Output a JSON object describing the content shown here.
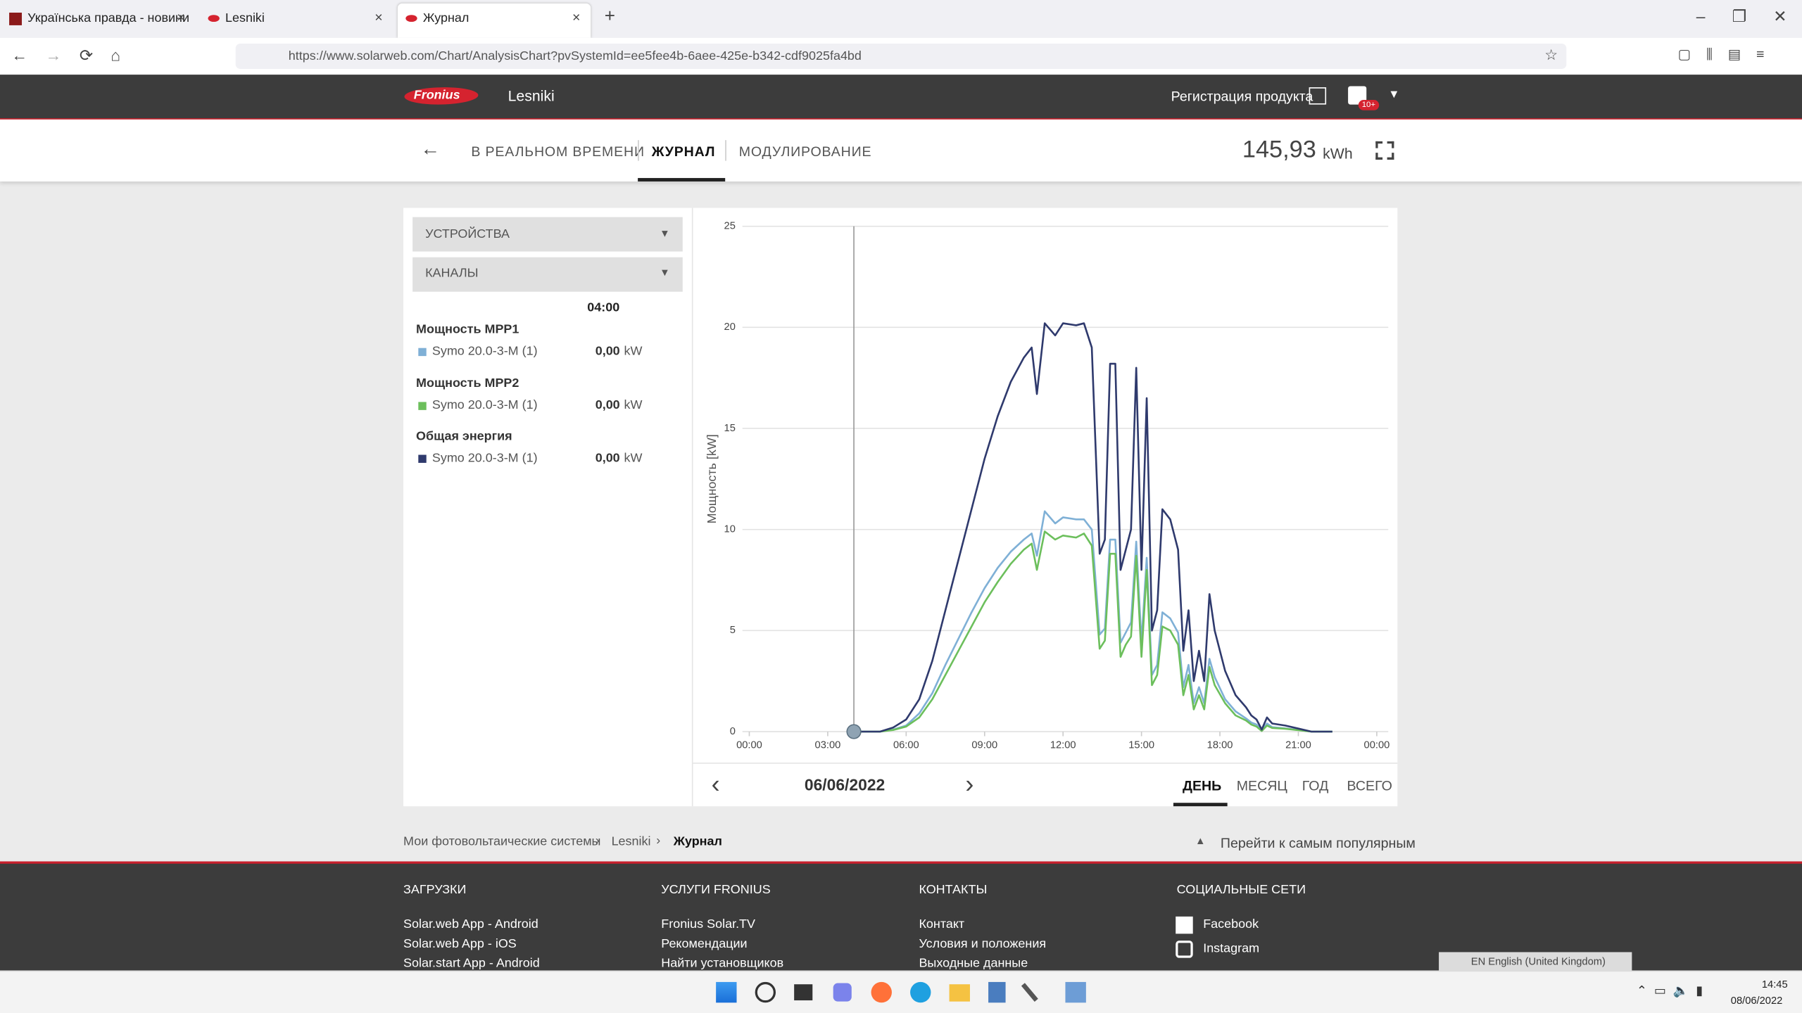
{
  "browser": {
    "tabs": [
      "Українська правда - новини",
      "Lesniki",
      "Журнал"
    ],
    "url": "https://www.solarweb.com/Chart/AnalysisChart?pvSystemId=ee5fee4b-6aee-425e-b342-cdf9025fa4bd"
  },
  "header": {
    "logo": "Fronius",
    "system": "Lesniki",
    "register": "Регистрация продукта",
    "badge": "10+"
  },
  "nav": {
    "items": [
      "В РЕАЛЬНОМ ВРЕМЕНИ",
      "ЖУРНАЛ",
      "МОДУЛИРОВАНИЕ"
    ],
    "total": "145,93",
    "total_unit": "kWh"
  },
  "sidebar": {
    "dropdowns": [
      "УСТРОЙСТВА",
      "КАНАЛЫ"
    ],
    "time": "04:00",
    "groups": [
      {
        "title": "Мощность MPP1",
        "device": "Symo 20.0-3-M (1)",
        "value": "0,00",
        "unit": "kW"
      },
      {
        "title": "Мощность MPP2",
        "device": "Symo 20.0-3-M (1)",
        "value": "0,00",
        "unit": "kW"
      },
      {
        "title": "Общая энергия",
        "device": "Symo 20.0-3-M (1)",
        "value": "0,00",
        "unit": "kW"
      }
    ]
  },
  "chart_data": {
    "type": "line",
    "y_label": "Мощность [kW]",
    "xlim": [
      0,
      24
    ],
    "xticks": [
      {
        "value": 0,
        "label": "00:00"
      },
      {
        "value": 3,
        "label": "03:00"
      },
      {
        "value": 6,
        "label": "06:00"
      },
      {
        "value": 9,
        "label": "09:00"
      },
      {
        "value": 12,
        "label": "12:00"
      },
      {
        "value": 15,
        "label": "15:00"
      },
      {
        "value": 18,
        "label": "18:00"
      },
      {
        "value": 21,
        "label": "21:00"
      },
      {
        "value": 24,
        "label": "00:00"
      }
    ],
    "ylim": [
      0,
      25
    ],
    "yticks": [
      0,
      5,
      10,
      15,
      20,
      25
    ],
    "grid": true,
    "cursor_x": 4,
    "x": [
      4,
      5,
      5.5,
      6,
      6.5,
      7,
      7.5,
      8,
      8.5,
      9,
      9.5,
      10,
      10.5,
      10.8,
      11,
      11.3,
      11.7,
      12,
      12.5,
      12.8,
      13.1,
      13.4,
      13.6,
      13.8,
      14,
      14.2,
      14.4,
      14.6,
      14.8,
      15,
      15.2,
      15.4,
      15.6,
      15.8,
      16.1,
      16.4,
      16.6,
      16.8,
      17,
      17.2,
      17.4,
      17.6,
      17.8,
      18.2,
      18.6,
      19,
      19.2,
      19.4,
      19.6,
      19.8,
      20,
      20.5,
      21,
      21.5,
      22,
      22.3
    ],
    "series": [
      {
        "name": "Мощность MPP1",
        "color": "#7fb0d6",
        "values": [
          0,
          0,
          0.1,
          0.3,
          0.9,
          1.9,
          3.3,
          4.6,
          5.9,
          7.1,
          8.1,
          8.9,
          9.5,
          9.8,
          8.7,
          10.9,
          10.3,
          10.6,
          10.5,
          10.5,
          10,
          4.8,
          5.1,
          9.5,
          9.5,
          4.4,
          4.9,
          5.4,
          9.4,
          4.4,
          8.6,
          2.8,
          3.3,
          5.9,
          5.6,
          4.9,
          2.2,
          3.3,
          1.4,
          2.2,
          1.4,
          3.6,
          2.7,
          1.6,
          1,
          0.65,
          0.45,
          0.35,
          0.05,
          0.4,
          0.22,
          0.16,
          0.08,
          0,
          0,
          0
        ]
      },
      {
        "name": "Мощность MPP2",
        "color": "#6cbf5c",
        "values": [
          0,
          0,
          0.08,
          0.25,
          0.7,
          1.6,
          2.8,
          4,
          5.2,
          6.4,
          7.4,
          8.3,
          9,
          9.3,
          8,
          9.9,
          9.5,
          9.7,
          9.6,
          9.8,
          9.2,
          4.1,
          4.5,
          8.8,
          8.8,
          3.7,
          4.3,
          4.7,
          8.7,
          3.7,
          8,
          2.3,
          2.8,
          5.2,
          5,
          4.3,
          1.8,
          2.8,
          1.1,
          1.8,
          1.1,
          3.2,
          2.3,
          1.4,
          0.8,
          0.55,
          0.35,
          0.25,
          0.03,
          0.3,
          0.18,
          0.14,
          0.07,
          0,
          0,
          0
        ]
      },
      {
        "name": "Общая энергия",
        "color": "#2f3a6d",
        "values": [
          0,
          0,
          0.2,
          0.6,
          1.6,
          3.5,
          6,
          8.5,
          11,
          13.5,
          15.6,
          17.3,
          18.5,
          19,
          16.7,
          20.2,
          19.6,
          20.2,
          20.1,
          20.2,
          19,
          8.8,
          9.5,
          18.2,
          18.2,
          8,
          9,
          10,
          18,
          8,
          16.5,
          5,
          6,
          11,
          10.5,
          9,
          4,
          6,
          2.5,
          4,
          2.5,
          6.8,
          5,
          3,
          1.8,
          1.2,
          0.8,
          0.6,
          0.1,
          0.7,
          0.4,
          0.3,
          0.15,
          0,
          0,
          0
        ]
      }
    ]
  },
  "date_nav": {
    "date": "06/06/2022",
    "periods": [
      "ДЕНЬ",
      "МЕСЯЦ",
      "ГОД",
      "ВСЕГО"
    ]
  },
  "breadcrumb": {
    "items": [
      "Мои фотовольтаические системы",
      "Lesniki",
      "Журнал"
    ],
    "top_link": "Перейти к самым популярным"
  },
  "footer": {
    "columns": [
      {
        "title": "ЗАГРУЗКИ",
        "links": [
          "Solar.web App - Android",
          "Solar.web App - iOS",
          "Solar.start App - Android"
        ]
      },
      {
        "title": "УСЛУГИ FRONIUS",
        "links": [
          "Fronius Solar.TV",
          "Рекомендации",
          "Найти установщиков"
        ]
      },
      {
        "title": "КОНТАКТЫ",
        "links": [
          "Контакт",
          "Условия и положения",
          "Выходные данные"
        ]
      },
      {
        "title": "СОЦИАЛЬНЫЕ СЕТИ",
        "links": [
          "Facebook",
          "Instagram"
        ]
      }
    ],
    "language": "EN English (United Kingdom)"
  },
  "taskbar": {
    "time": "14:45",
    "date": "08/06/2022"
  }
}
